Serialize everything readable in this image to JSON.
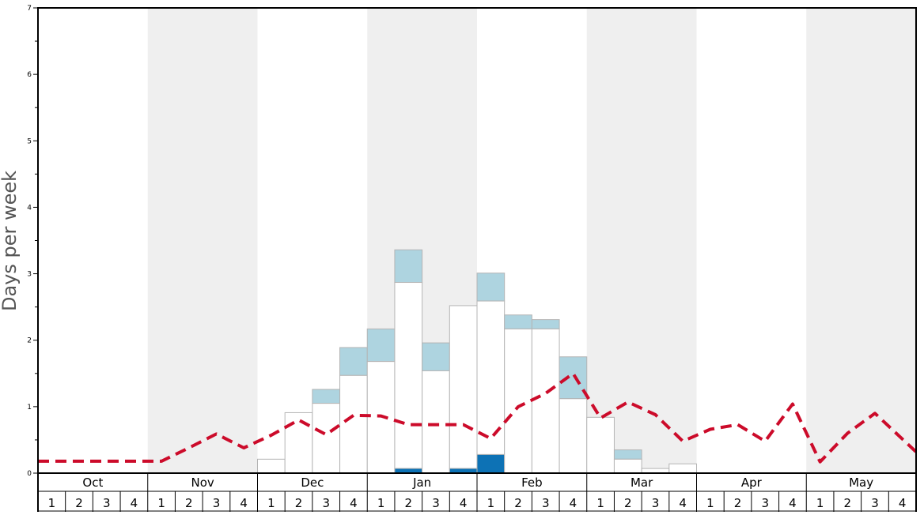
{
  "chart_data": {
    "type": "bar",
    "ylabel": "Days per week",
    "ylim": [
      0,
      7
    ],
    "y_ticks": [
      "0",
      "1",
      "2",
      "3",
      "4",
      "5",
      "6",
      "7"
    ],
    "months": [
      "Oct",
      "Nov",
      "Dec",
      "Jan",
      "Feb",
      "Mar",
      "Apr",
      "May"
    ],
    "weeks": [
      "1",
      "2",
      "3",
      "4"
    ],
    "alternate_month_shading": true,
    "colors": {
      "base_bar": "#ffffff",
      "light_segment": "#aed4e0",
      "dark_segment": "#0d72b5",
      "line": "#cc0b2a",
      "shade": "#efefef",
      "bar_stroke": "#b4b4b4"
    },
    "series": [
      {
        "key": "dark_bottom",
        "values": [
          0,
          0,
          0,
          0,
          0,
          0,
          0,
          0,
          0,
          0,
          0,
          0,
          0,
          0.07,
          0,
          0.07,
          0.28,
          0,
          0,
          0,
          0,
          0,
          0,
          0,
          0,
          0,
          0,
          0,
          0,
          0,
          0,
          0
        ]
      },
      {
        "key": "white_top",
        "values": [
          0,
          0,
          0,
          0,
          0,
          0,
          0,
          0,
          0.21,
          0.91,
          1.05,
          1.47,
          1.68,
          2.87,
          1.54,
          2.52,
          2.59,
          2.17,
          2.17,
          1.12,
          0.84,
          0.21,
          0.07,
          0.14,
          0,
          0,
          0,
          0,
          0,
          0,
          0,
          0
        ]
      },
      {
        "key": "light_top",
        "values": [
          0,
          0,
          0,
          0,
          0,
          0,
          0,
          0,
          0.21,
          0.91,
          1.26,
          1.89,
          2.17,
          3.36,
          1.96,
          2.52,
          3.01,
          2.38,
          2.31,
          1.75,
          0.84,
          0.35,
          0.07,
          0.14,
          0,
          0,
          0,
          0,
          0,
          0,
          0,
          0
        ]
      },
      {
        "key": "line",
        "values": [
          0.18,
          0.18,
          0.18,
          0.18,
          0.18,
          0.38,
          0.59,
          0.38,
          0.57,
          0.8,
          0.58,
          0.87,
          0.86,
          0.73,
          0.73,
          0.73,
          0.52,
          1.0,
          1.2,
          1.5,
          0.83,
          1.07,
          0.88,
          0.48,
          0.66,
          0.73,
          0.48,
          1.04,
          0.17,
          0.6,
          0.9,
          0.32
        ]
      }
    ]
  }
}
